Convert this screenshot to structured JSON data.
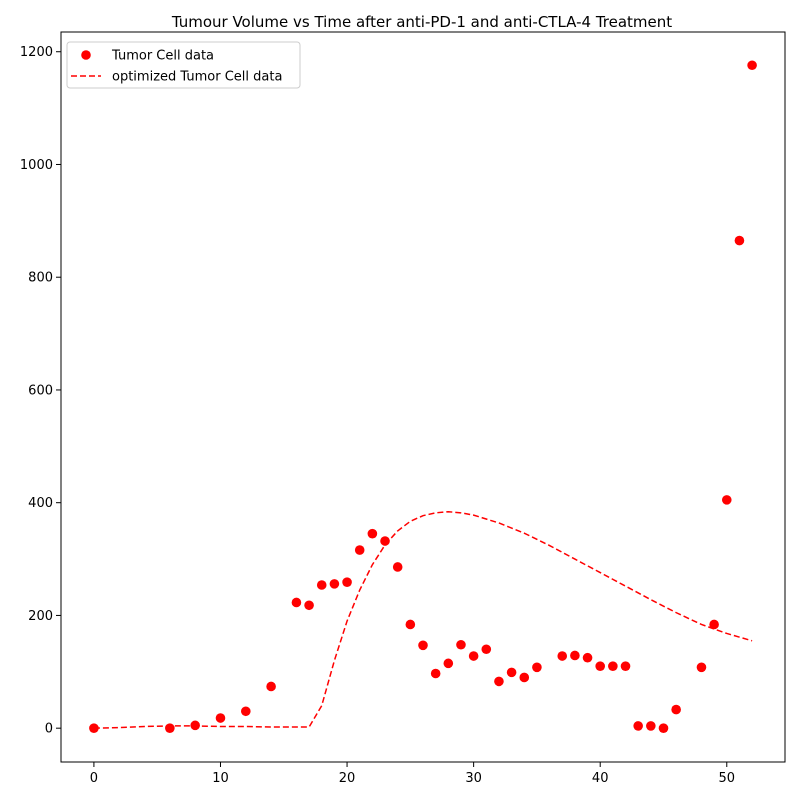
{
  "chart_data": {
    "type": "scatter",
    "title": "Tumour Volume vs Time after anti-PD-1 and anti-CTLA-4 Treatment",
    "xlabel": "",
    "ylabel": "",
    "xlim": [
      -2.6,
      54.6
    ],
    "ylim": [
      -60,
      1235
    ],
    "xticks": [
      0,
      10,
      20,
      30,
      40,
      50
    ],
    "yticks": [
      0,
      200,
      400,
      600,
      800,
      1000,
      1200
    ],
    "grid": false,
    "legend_position": "top-left",
    "colors": {
      "series": "#ff0000"
    },
    "series": [
      {
        "name": "Tumor Cell data",
        "style": "markers",
        "x": [
          0,
          6,
          8,
          10,
          12,
          14,
          16,
          17,
          18,
          19,
          20,
          21,
          22,
          23,
          24,
          25,
          26,
          27,
          28,
          29,
          30,
          31,
          32,
          33,
          34,
          35,
          37,
          38,
          39,
          40,
          41,
          42,
          43,
          44,
          45,
          46,
          48,
          49,
          50,
          51,
          52
        ],
        "y": [
          0,
          0,
          5,
          18,
          30,
          74,
          223,
          218,
          254,
          256,
          259,
          316,
          345,
          332,
          286,
          184,
          147,
          97,
          115,
          148,
          128,
          140,
          83,
          99,
          90,
          108,
          128,
          129,
          125,
          110,
          110,
          110,
          4,
          4,
          0,
          33,
          108,
          184,
          405,
          865,
          1176
        ]
      },
      {
        "name": "optimized Tumor Cell data",
        "style": "dashed-line",
        "x": [
          0,
          2,
          4,
          6,
          8,
          10,
          12,
          14,
          16,
          17,
          18,
          19,
          20,
          21,
          22,
          23,
          24,
          25,
          26,
          27,
          28,
          29,
          30,
          32,
          34,
          36,
          38,
          40,
          42,
          44,
          46,
          48,
          50,
          52
        ],
        "y": [
          0,
          1,
          3,
          4,
          4,
          3,
          3,
          2,
          2,
          2,
          40,
          120,
          190,
          245,
          290,
          325,
          350,
          367,
          377,
          382,
          384,
          382,
          378,
          364,
          346,
          324,
          300,
          276,
          252,
          228,
          205,
          184,
          168,
          155
        ]
      }
    ]
  }
}
